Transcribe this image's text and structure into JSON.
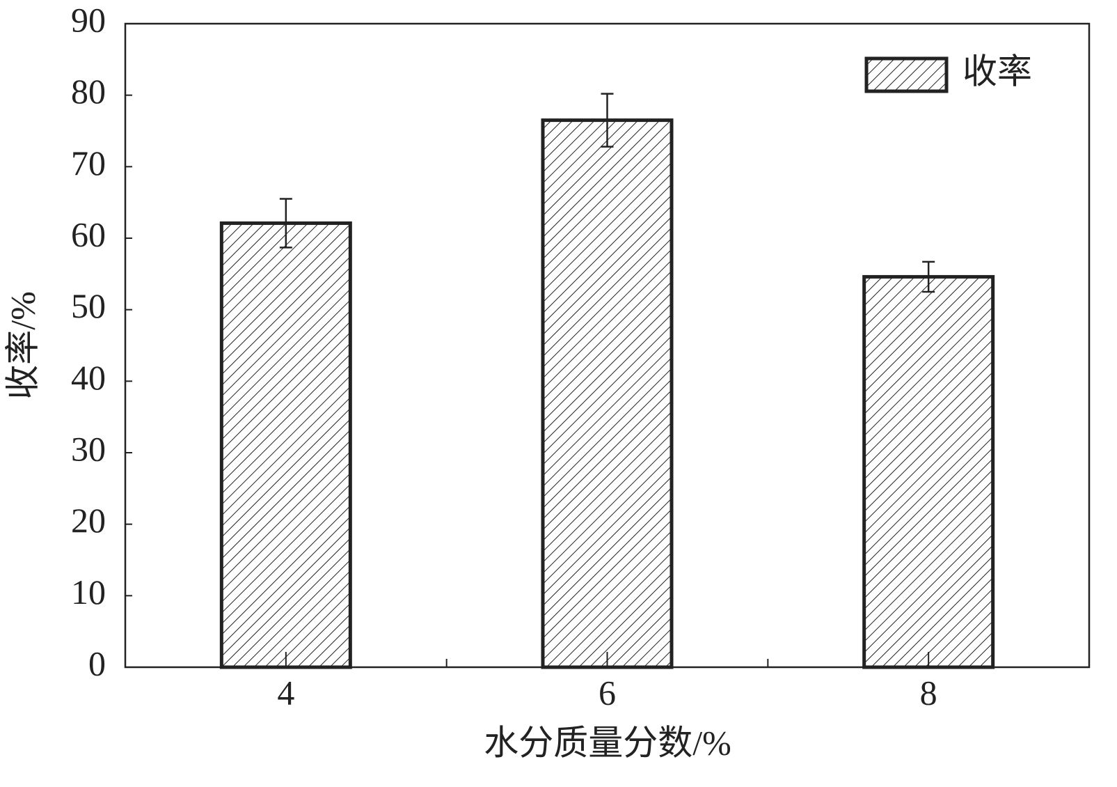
{
  "chart_data": {
    "type": "bar",
    "xlabel": "水分质量分数/%",
    "ylabel": "收率/%",
    "categories": [
      "4",
      "6",
      "8"
    ],
    "series": [
      {
        "name": "收率",
        "color": "#222222",
        "values": [
          62.1,
          76.5,
          54.6
        ],
        "errors": [
          3.4,
          3.7,
          2.1
        ]
      }
    ],
    "pattern": "hatch",
    "ylim": [
      0,
      90
    ],
    "yticks": [
      0,
      10,
      20,
      30,
      40,
      50,
      60,
      70,
      80,
      90
    ],
    "legend": "upper-right"
  }
}
